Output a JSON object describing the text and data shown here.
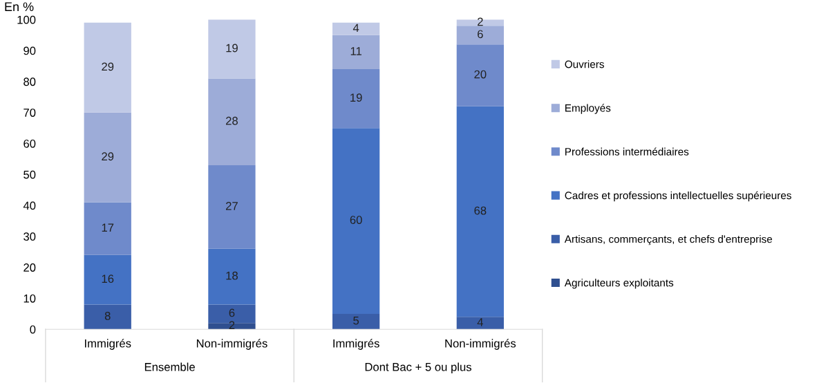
{
  "chart_data": {
    "type": "bar",
    "stacked": true,
    "title": "En %",
    "categories": [
      "Immigrés",
      "Non-immigrés",
      "Immigrés",
      "Non-immigrés"
    ],
    "annotations": [
      "Ensemble",
      "Dont Bac + 5 ou plus"
    ],
    "series": [
      {
        "name": "Agriculteurs exploitants",
        "color": "#2f4f8f",
        "values": [
          null,
          2,
          null,
          null
        ],
        "value_labels": [
          null,
          "2",
          null,
          null
        ]
      },
      {
        "name": "Artisans, commerçants, et chefs d'entreprise",
        "color": "#3a5ea8",
        "values": [
          8,
          6,
          5,
          4
        ],
        "value_labels": [
          "8",
          "6",
          "5",
          "4"
        ]
      },
      {
        "name": "Cadres et professions intellectuelles supérieures",
        "color": "#4472c4",
        "values": [
          16,
          18,
          60,
          68
        ],
        "value_labels": [
          "16",
          "18",
          "60",
          "68"
        ]
      },
      {
        "name": "Professions intermédiaires",
        "color": "#6f8acb",
        "values": [
          17,
          27,
          19,
          20
        ],
        "value_labels": [
          "17",
          "27",
          "19",
          "20"
        ]
      },
      {
        "name": "Employés",
        "color": "#9dacd8",
        "values": [
          29,
          28,
          11,
          6
        ],
        "value_labels": [
          "29",
          "28",
          "11",
          "6"
        ]
      },
      {
        "name": "Ouvriers",
        "color": "#c0c9e6",
        "values": [
          29,
          19,
          4,
          2
        ],
        "value_labels": [
          "29",
          "19",
          "4",
          "2"
        ]
      }
    ],
    "ylim": [
      0,
      100
    ],
    "yticks": [
      0,
      10,
      20,
      30,
      40,
      50,
      60,
      70,
      80,
      90,
      100
    ],
    "grid": false,
    "legend": "right"
  }
}
